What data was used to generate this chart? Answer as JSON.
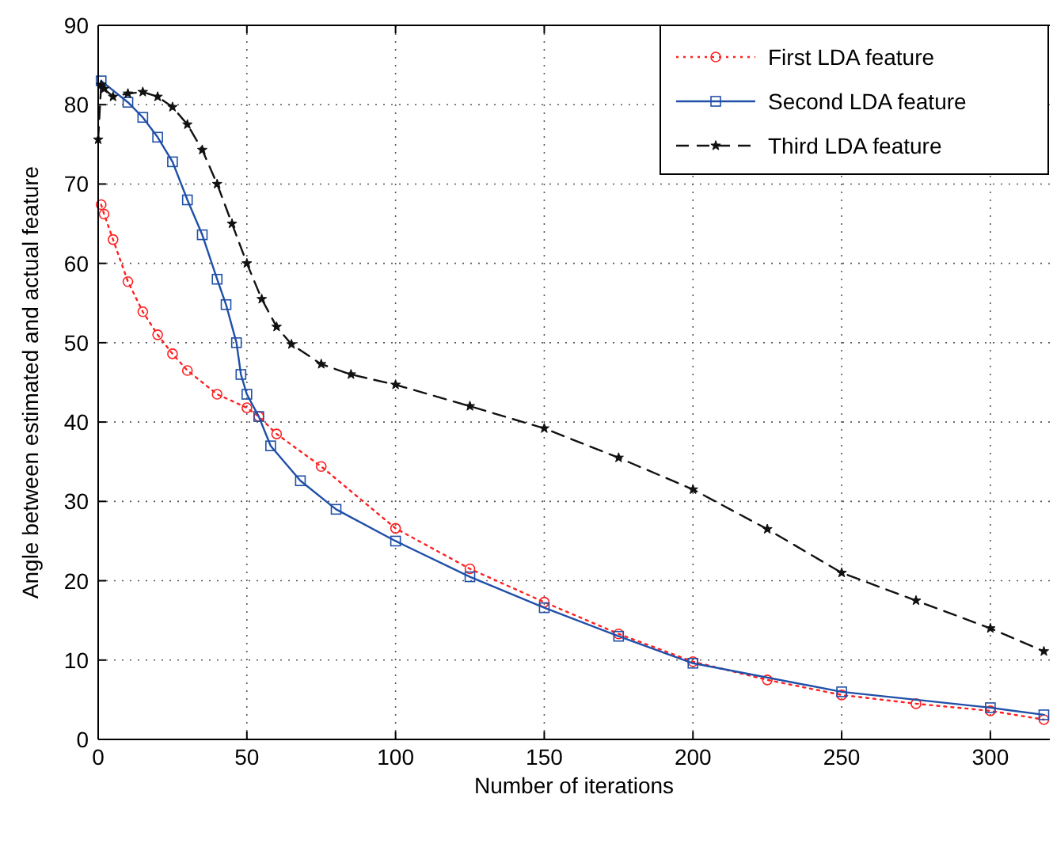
{
  "chart_data": {
    "type": "line",
    "xlabel": "Number of iterations",
    "ylabel": "Angle between estimated and actual feature",
    "xlim": [
      0,
      320
    ],
    "ylim": [
      0,
      90
    ],
    "xticks": [
      0,
      50,
      100,
      150,
      200,
      250,
      300
    ],
    "yticks": [
      0,
      10,
      20,
      30,
      40,
      50,
      60,
      70,
      80,
      90
    ],
    "grid": true,
    "legend": "top right",
    "series": [
      {
        "name": "First LDA feature",
        "color": "#ff2020",
        "marker": "circle",
        "line_style": "dotted",
        "x": [
          1,
          2,
          5,
          10,
          15,
          20,
          25,
          30,
          40,
          50,
          54,
          60,
          75,
          100,
          125,
          150,
          175,
          200,
          225,
          250,
          275,
          300,
          318
        ],
        "values": [
          67.4,
          66.2,
          63,
          57.7,
          53.9,
          51,
          48.6,
          46.5,
          43.5,
          41.8,
          40.7,
          38.5,
          34.4,
          26.6,
          21.5,
          17.3,
          13.3,
          9.8,
          7.5,
          5.6,
          4.5,
          3.6,
          2.5
        ]
      },
      {
        "name": "Second LDA feature",
        "color": "#1f4fa8",
        "marker": "square",
        "line_style": "solid",
        "x": [
          1,
          10,
          15,
          20,
          25,
          30,
          35,
          40,
          43,
          46.5,
          48,
          50,
          54,
          58,
          68,
          80,
          100,
          125,
          150,
          175,
          200,
          250,
          300,
          318
        ],
        "values": [
          83,
          80.3,
          78.4,
          75.9,
          72.8,
          68,
          63.6,
          58,
          54.8,
          50,
          46,
          43.5,
          40.7,
          37,
          32.6,
          29,
          25,
          20.5,
          16.6,
          13,
          9.6,
          6,
          4,
          3.1
        ]
      },
      {
        "name": "Third LDA feature",
        "color": "#111111",
        "marker": "star",
        "line_style": "dashed",
        "x": [
          0,
          1,
          2,
          5,
          10,
          15,
          20,
          25,
          30,
          35,
          40,
          45,
          50,
          55,
          60,
          65,
          75,
          85,
          100,
          125,
          150,
          175,
          200,
          225,
          250,
          275,
          300,
          318
        ],
        "values": [
          75.6,
          82.5,
          82,
          81,
          81.4,
          81.6,
          81,
          79.7,
          77.5,
          74.3,
          70,
          65,
          60,
          55.5,
          52,
          49.8,
          47.3,
          46,
          44.7,
          42,
          39.2,
          35.5,
          31.5,
          26.5,
          21,
          17.5,
          14,
          11.1
        ]
      }
    ]
  }
}
